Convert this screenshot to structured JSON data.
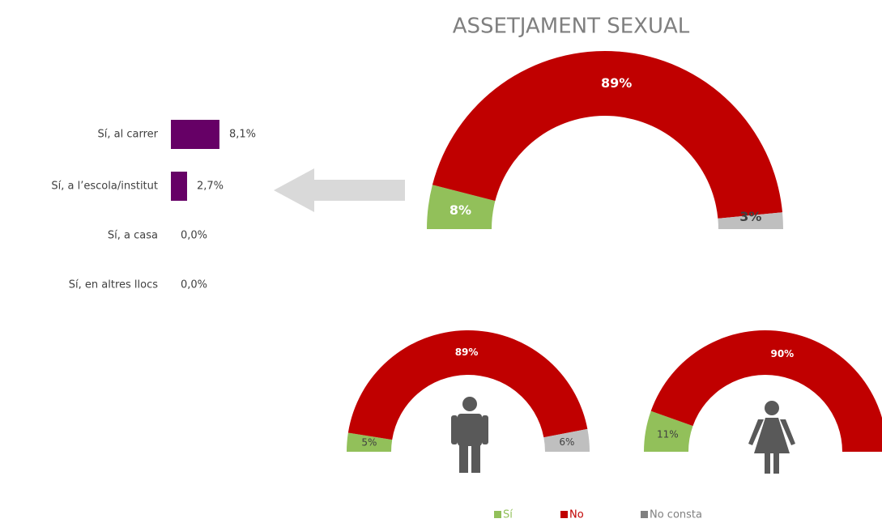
{
  "title": "ASSETJAMENT SEXUAL",
  "legend": [
    {
      "name": "Sí",
      "color": "#92c05a"
    },
    {
      "name": "No",
      "color": "#c00000"
    },
    {
      "name": "No consta",
      "color": "#bfbfbf"
    }
  ],
  "chart_data": [
    {
      "type": "bar",
      "orientation": "horizontal",
      "categories": [
        "Sí, al carrer",
        "Sí, a l’escola/institut",
        "Sí, a casa",
        "Sí, en altres llocs"
      ],
      "values": [
        8.1,
        2.7,
        0,
        0
      ],
      "value_labels": [
        "8,1%",
        "2,7%",
        "0,0%",
        "0,0%"
      ],
      "color": "#660066"
    },
    {
      "type": "half-donut",
      "values": [
        8,
        89,
        3
      ],
      "value_labels": [
        "8%",
        "89%",
        "3%"
      ]
    },
    {
      "type": "half-donut",
      "values": [
        5,
        89,
        6
      ],
      "value_labels": [
        "5%",
        "89%",
        "6%"
      ]
    },
    {
      "type": "half-donut",
      "values": [
        11,
        90
      ],
      "value_labels": [
        "11%",
        "90%"
      ]
    }
  ]
}
